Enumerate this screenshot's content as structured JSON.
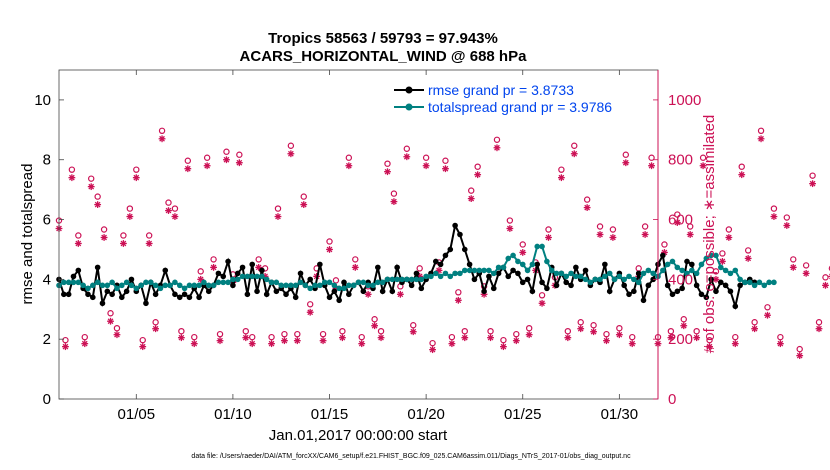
{
  "chart_data": {
    "type": "line",
    "title_line1": "Tropics 58563 / 59793 = 97.943%",
    "title_line2": "ACARS_HORIZONTAL_WIND @ 688 hPa",
    "xlabel": "Jan.01,2017 00:00:00 start",
    "ylabel_left": "rmse and totalspread",
    "ylabel_right": "# of obs: o=possible; ∗=assimilated",
    "footnote": "data file: /Users/raeder/DAI/ATM_forcXX/CAM6_setup/f.e21.FHIST_BGC.f09_025.CAM6assim.011/Diags_NTrS_2017-01/obs_diag_output.nc",
    "xlim": [
      1,
      32
    ],
    "ylim_left": [
      0,
      11
    ],
    "ylim_right": [
      0,
      1100
    ],
    "x_ticks": [
      5,
      10,
      15,
      20,
      25,
      30
    ],
    "x_tick_labels": [
      "01/05",
      "01/10",
      "01/15",
      "01/20",
      "01/25",
      "01/30"
    ],
    "y_ticks_left": [
      "0",
      "2",
      "4",
      "6",
      "8",
      "10"
    ],
    "y_ticks_right": [
      "0",
      "200",
      "400",
      "600",
      "800",
      "1000"
    ],
    "legend": [
      "rmse grand pr = 3.8733",
      "totalspread grand pr = 3.9786"
    ],
    "series": [
      {
        "name": "rmse",
        "color": "#000000",
        "axis": "left",
        "x_start": 1.0,
        "x_step": 0.25,
        "values": [
          4.0,
          3.5,
          3.5,
          4.1,
          4.3,
          3.7,
          3.5,
          3.4,
          4.4,
          3.2,
          3.6,
          3.5,
          3.8,
          3.4,
          3.6,
          4.0,
          3.6,
          3.8,
          3.2,
          3.9,
          3.5,
          3.8,
          4.3,
          3.8,
          3.5,
          3.4,
          3.5,
          3.4,
          3.7,
          3.4,
          3.8,
          3.6,
          3.8,
          4.2,
          4.1,
          4.6,
          3.8,
          4.2,
          4.4,
          3.5,
          4.5,
          3.6,
          4.3,
          3.5,
          3.9,
          3.6,
          3.7,
          3.5,
          3.7,
          3.4,
          4.2,
          3.8,
          4.0,
          3.7,
          4.5,
          3.8,
          3.4,
          3.6,
          3.3,
          3.9,
          3.5,
          3.8,
          3.9,
          3.6,
          3.9,
          3.7,
          4.4,
          3.6,
          4.0,
          3.6,
          4.4,
          3.9,
          4.0,
          3.8,
          4.2,
          3.7,
          4.0,
          4.2,
          4.6,
          4.5,
          4.8,
          5.0,
          5.8,
          5.5,
          5.0,
          4.5,
          4.0,
          4.2,
          3.6,
          4.1,
          3.7,
          4.2,
          4.4,
          4.1,
          4.3,
          4.2,
          3.9,
          4.0,
          3.6,
          4.5,
          3.9,
          3.7,
          4.4,
          3.8,
          4.2,
          3.9,
          3.8,
          4.4,
          4.0,
          4.3,
          3.8,
          4.0,
          3.9,
          4.5,
          3.6,
          4.0,
          4.2,
          3.8,
          3.5,
          3.6,
          4.2,
          3.3,
          3.8,
          4.0,
          4.5,
          4.8,
          3.8,
          3.5,
          3.6,
          3.7,
          4.6,
          4.5,
          3.8,
          3.5,
          3.4,
          4.0,
          3.6,
          3.9,
          3.8,
          3.6,
          3.1,
          3.8,
          3.9,
          4.0,
          3.9
        ]
      },
      {
        "name": "totalspread",
        "color": "#008080",
        "axis": "left",
        "x_start": 1.0,
        "x_step": 0.25,
        "values": [
          3.8,
          3.9,
          3.9,
          3.9,
          3.9,
          3.8,
          3.7,
          3.8,
          3.9,
          3.8,
          3.8,
          3.9,
          3.7,
          3.8,
          3.9,
          3.8,
          3.7,
          3.8,
          3.9,
          3.9,
          3.8,
          3.7,
          3.8,
          3.8,
          3.9,
          3.8,
          3.7,
          3.8,
          3.8,
          3.8,
          3.9,
          3.8,
          3.8,
          3.9,
          3.9,
          3.9,
          4.0,
          4.0,
          4.1,
          4.1,
          4.1,
          4.1,
          4.1,
          4.0,
          3.9,
          3.9,
          3.8,
          3.8,
          3.8,
          3.8,
          3.9,
          3.8,
          3.7,
          3.8,
          3.8,
          3.9,
          3.9,
          3.8,
          3.7,
          3.7,
          3.8,
          3.8,
          3.9,
          3.9,
          3.8,
          3.8,
          3.9,
          3.9,
          4.0,
          4.0,
          4.0,
          4.0,
          4.0,
          4.0,
          4.0,
          4.0,
          4.1,
          4.1,
          4.2,
          4.1,
          4.2,
          4.1,
          4.2,
          4.2,
          4.3,
          4.3,
          4.3,
          4.3,
          4.3,
          4.3,
          4.2,
          4.4,
          4.4,
          4.7,
          4.8,
          4.6,
          4.5,
          4.3,
          4.5,
          5.1,
          5.1,
          4.6,
          4.3,
          4.2,
          4.2,
          4.1,
          4.2,
          4.1,
          4.1,
          4.0,
          3.9,
          4.0,
          4.0,
          4.1,
          4.2,
          4.0,
          4.1,
          4.0,
          4.1,
          4.0,
          3.9,
          4.2,
          4.3,
          4.2,
          4.1,
          4.3,
          4.5,
          4.6,
          4.4,
          4.3,
          4.2,
          4.3,
          4.2,
          4.5,
          4.7,
          4.8,
          4.8,
          4.4,
          4.3,
          4.2,
          4.3,
          4.0,
          3.9,
          3.9,
          3.8,
          3.9,
          3.8,
          3.9,
          3.9
        ]
      },
      {
        "name": "obs_possible",
        "color": "#cc1155",
        "axis": "right",
        "marker": "o",
        "x_start": 1.0,
        "x_step": 0.333333,
        "values": [
          580,
          180,
          750,
          530,
          190,
          720,
          660,
          550,
          270,
          220,
          530,
          620,
          750,
          180,
          530,
          240,
          880,
          640,
          620,
          210,
          780,
          190,
          410,
          790,
          450,
          200,
          810,
          400,
          800,
          210,
          190,
          450,
          420,
          190,
          620,
          200,
          830,
          200,
          660,
          300,
          420,
          200,
          510,
          380,
          210,
          790,
          450,
          190,
          360,
          250,
          210,
          770,
          670,
          360,
          820,
          230,
          420,
          790,
          170,
          440,
          780,
          190,
          340,
          210,
          680,
          760,
          360,
          210,
          850,
          180,
          580,
          200,
          500,
          220,
          440,
          330,
          550,
          390,
          750,
          210,
          830,
          240,
          650,
          230,
          560,
          200,
          550,
          220,
          800,
          190,
          420,
          560,
          790,
          190,
          500,
          210,
          600,
          250,
          560,
          210,
          790,
          180,
          410,
          470,
          550,
          190,
          760,
          480,
          240,
          880,
          290,
          620,
          190,
          590,
          450,
          150,
          430,
          730,
          240,
          390,
          420,
          730,
          0
        ]
      },
      {
        "name": "obs_assimilated",
        "color": "#cc1155",
        "axis": "right",
        "marker": "*",
        "x_start": 1.0,
        "x_step": 0.333333,
        "values": [
          570,
          175,
          740,
          520,
          185,
          710,
          650,
          540,
          260,
          215,
          520,
          610,
          740,
          175,
          520,
          235,
          870,
          630,
          610,
          205,
          770,
          185,
          400,
          780,
          440,
          195,
          800,
          390,
          790,
          205,
          185,
          440,
          410,
          185,
          610,
          195,
          820,
          195,
          650,
          290,
          410,
          195,
          500,
          370,
          205,
          780,
          440,
          185,
          350,
          245,
          205,
          760,
          660,
          350,
          810,
          225,
          410,
          780,
          165,
          430,
          770,
          185,
          330,
          205,
          670,
          750,
          350,
          205,
          840,
          175,
          570,
          195,
          490,
          215,
          430,
          320,
          540,
          380,
          740,
          205,
          820,
          235,
          640,
          225,
          550,
          195,
          540,
          215,
          790,
          185,
          410,
          550,
          780,
          185,
          490,
          205,
          590,
          245,
          550,
          205,
          780,
          175,
          400,
          460,
          540,
          185,
          750,
          470,
          235,
          870,
          280,
          610,
          185,
          580,
          440,
          145,
          420,
          720,
          235,
          380,
          410,
          720,
          0
        ]
      }
    ]
  }
}
